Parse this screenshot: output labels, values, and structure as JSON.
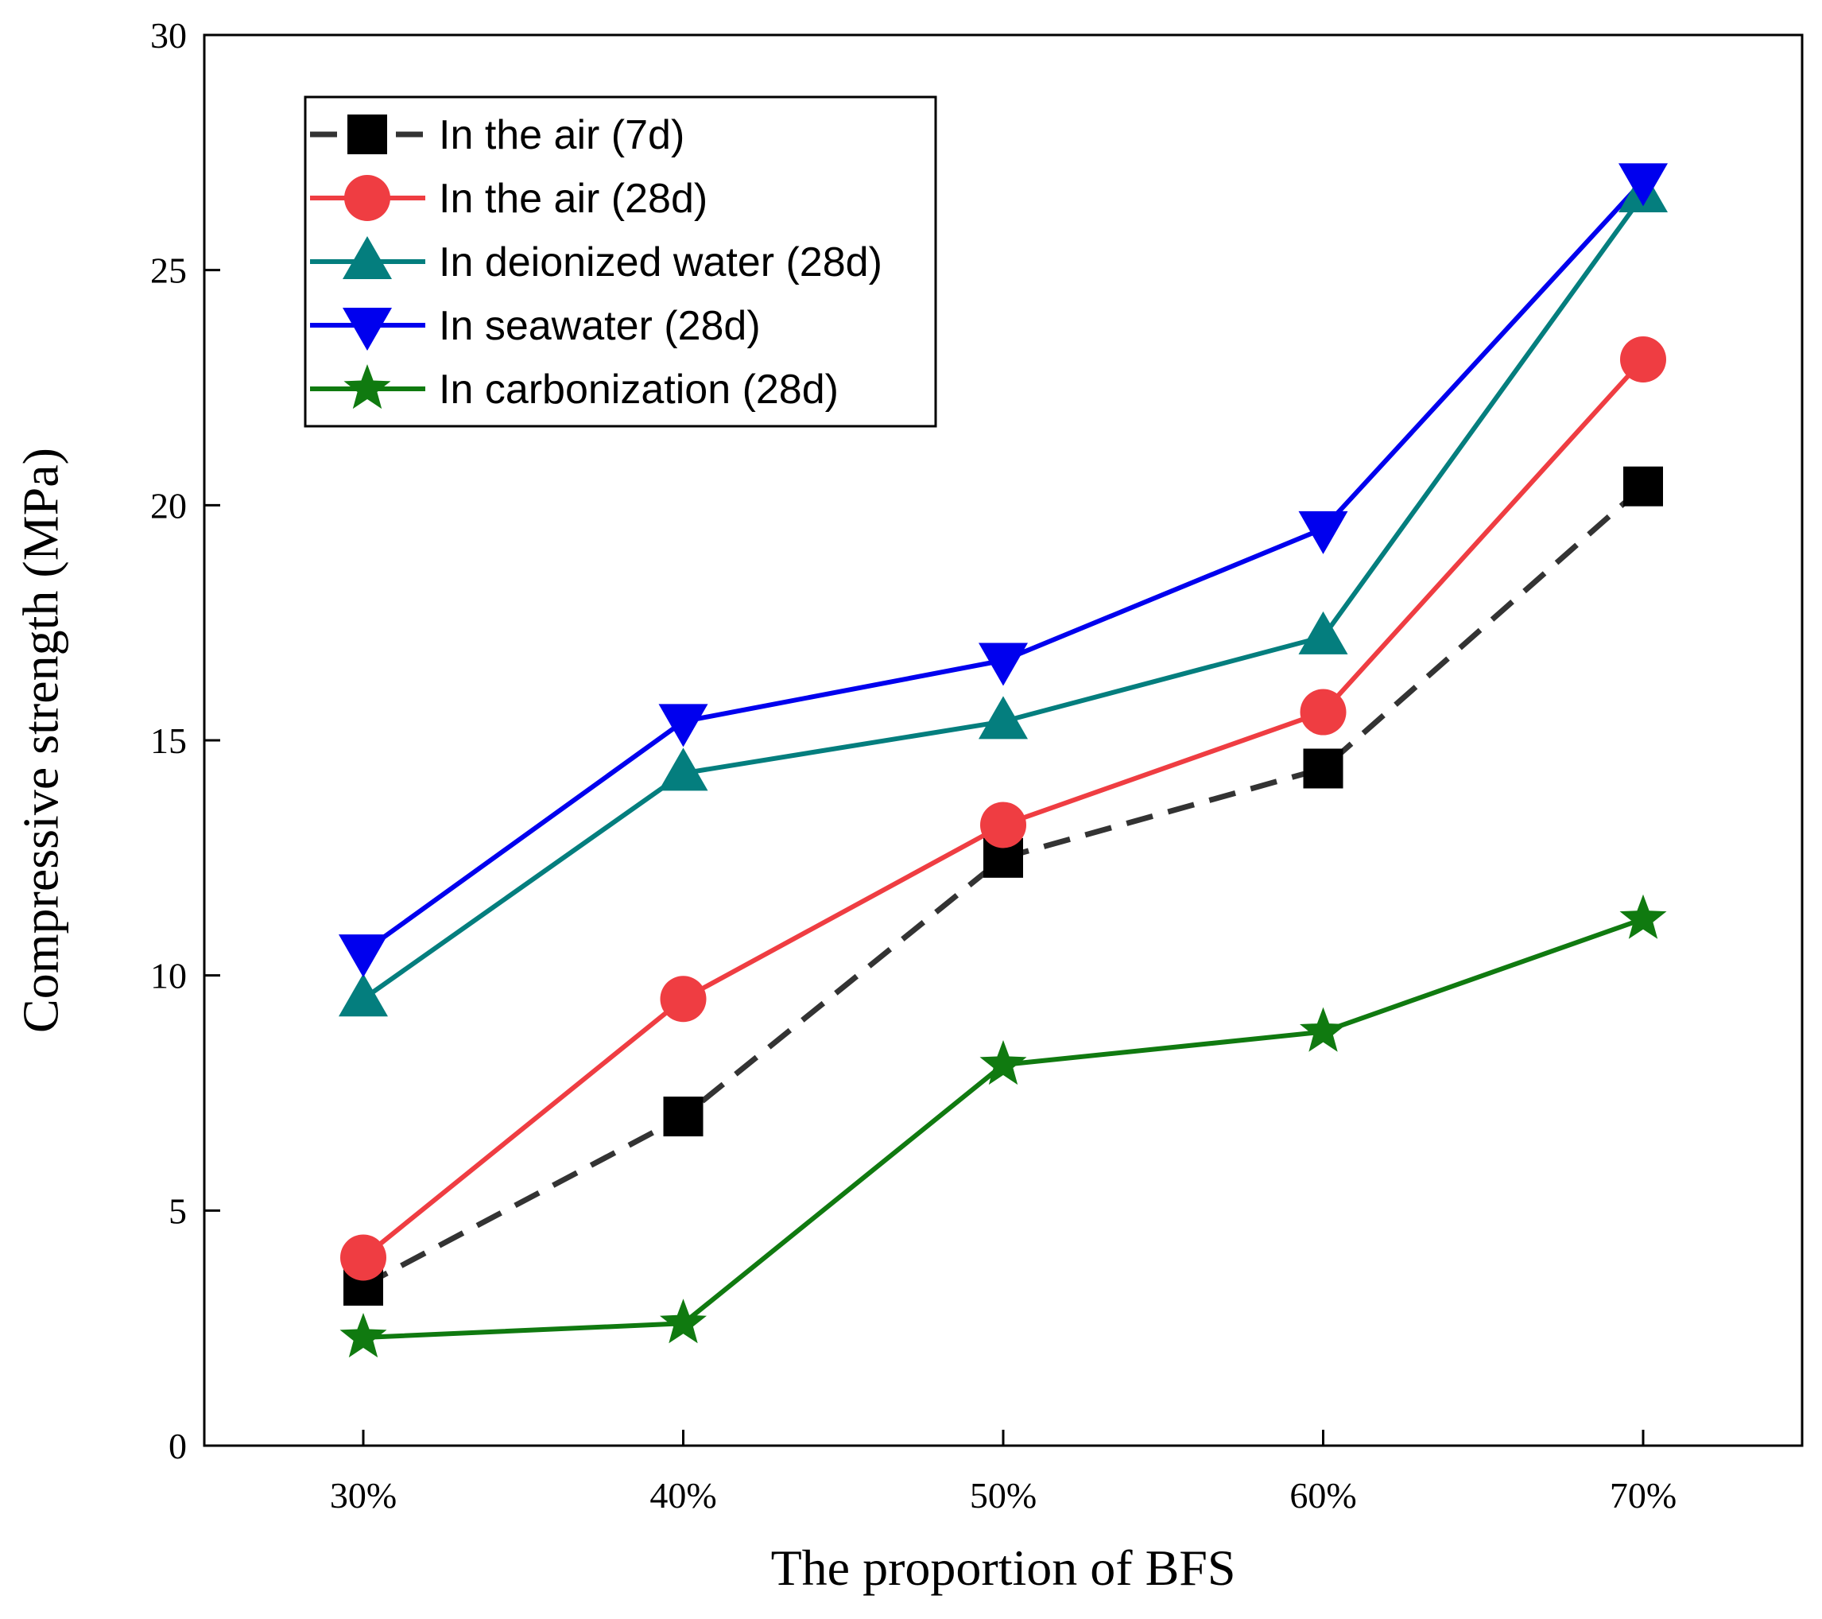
{
  "chart_data": {
    "type": "line",
    "title": "",
    "xlabel": "The proportion of BFS",
    "ylabel": "Compressive strength (MPa)",
    "categories": [
      "30%",
      "40%",
      "50%",
      "60%",
      "70%"
    ],
    "ylim": [
      0,
      30
    ],
    "yticks": [
      "0",
      "5",
      "10",
      "15",
      "20",
      "25",
      "30"
    ],
    "legend_position": "top-left",
    "grid": false,
    "series": [
      {
        "name": "In the air (7d)",
        "values": [
          3.4,
          7.0,
          12.5,
          14.4,
          20.4
        ],
        "color": "#333333",
        "marker": "square",
        "dashed": true
      },
      {
        "name": "In the air (28d)",
        "values": [
          4.0,
          9.5,
          13.2,
          15.6,
          23.1
        ],
        "color": "#ef3d42",
        "marker": "circle",
        "dashed": false
      },
      {
        "name": "In deionized water (28d)",
        "values": [
          9.5,
          14.3,
          15.4,
          17.2,
          26.6
        ],
        "color": "#047e7e",
        "marker": "triangle-up",
        "dashed": false
      },
      {
        "name": "In seawater (28d)",
        "values": [
          10.5,
          15.4,
          16.7,
          19.5,
          26.9
        ],
        "color": "#0000ee",
        "marker": "triangle-down",
        "dashed": false
      },
      {
        "name": "In carbonization (28d)",
        "values": [
          2.3,
          2.6,
          8.1,
          8.8,
          11.2
        ],
        "color": "#107a10",
        "marker": "star",
        "dashed": false
      }
    ]
  }
}
